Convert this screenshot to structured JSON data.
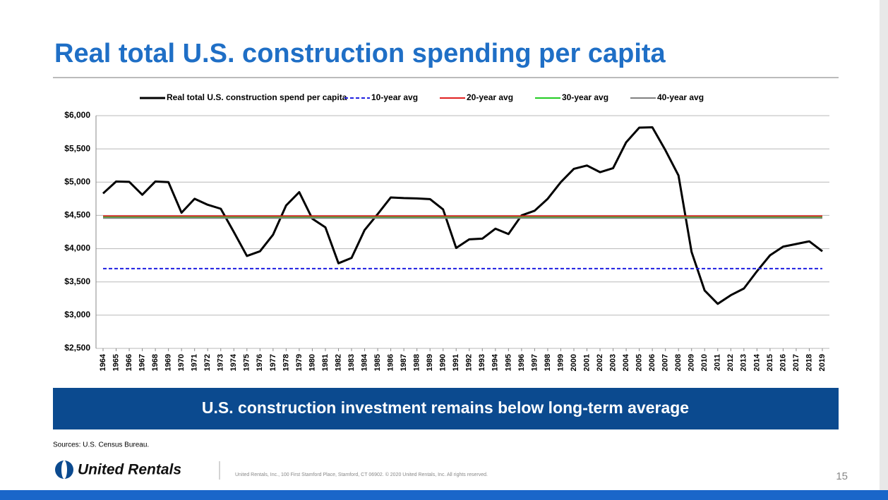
{
  "title": "Real total U.S. construction spending per capita",
  "chart_data": {
    "type": "line",
    "categories": [
      "1964",
      "1965",
      "1966",
      "1967",
      "1968",
      "1969",
      "1970",
      "1971",
      "1972",
      "1973",
      "1974",
      "1975",
      "1976",
      "1977",
      "1978",
      "1979",
      "1980",
      "1981",
      "1982",
      "1983",
      "1984",
      "1985",
      "1986",
      "1987",
      "1988",
      "1989",
      "1990",
      "1991",
      "1992",
      "1993",
      "1994",
      "1995",
      "1996",
      "1997",
      "1998",
      "1999",
      "2000",
      "2001",
      "2002",
      "2003",
      "2004",
      "2005",
      "2006",
      "2007",
      "2008",
      "2009",
      "2010",
      "2011",
      "2012",
      "2013",
      "2014",
      "2015",
      "2016",
      "2017",
      "2018",
      "2019"
    ],
    "series": [
      {
        "name": "Real total U.S. construction spend per capita",
        "color": "#000000",
        "values": [
          4830,
          5010,
          5005,
          4810,
          5010,
          5000,
          4540,
          4750,
          4660,
          4600,
          4250,
          3890,
          3960,
          4210,
          4650,
          4850,
          4450,
          4320,
          3780,
          3860,
          4280,
          4520,
          4770,
          4760,
          4755,
          4745,
          4590,
          4010,
          4140,
          4150,
          4300,
          4220,
          4500,
          4570,
          4750,
          5000,
          5200,
          5250,
          5150,
          5210,
          5600,
          5820,
          5825,
          5480,
          5100,
          3950,
          3370,
          3170,
          3300,
          3400,
          3660,
          3900,
          4030,
          4070,
          4110,
          3960
        ]
      },
      {
        "name": "10-year avg",
        "color": "#1f1fe0",
        "dashed": true,
        "value": 3700
      },
      {
        "name": "20-year avg",
        "color": "#e02020",
        "value": 4490
      },
      {
        "name": "30-year avg",
        "color": "#22cc22",
        "value": 4470
      },
      {
        "name": "40-year avg",
        "color": "#808080",
        "value": 4460
      }
    ],
    "ylim": [
      2500,
      6000
    ],
    "yticks": [
      {
        "value": 2500,
        "label": "$2,500"
      },
      {
        "value": 3000,
        "label": "$3,000"
      },
      {
        "value": 3500,
        "label": "$3,500"
      },
      {
        "value": 4000,
        "label": "$4,000"
      },
      {
        "value": 4500,
        "label": "$4,500"
      },
      {
        "value": 5000,
        "label": "$5,000"
      },
      {
        "value": 5500,
        "label": "$5,500"
      },
      {
        "value": 6000,
        "label": "$6,000"
      }
    ],
    "grid": true,
    "legend": "top"
  },
  "banner": "U.S. construction investment remains below long-term average",
  "sources": "Sources: U.S. Census Bureau.",
  "logo": "United Rentals",
  "footer": "United Rentals, Inc., 100 First Stamford Place, Stamford, CT 06902. © 2020 United Rentals, Inc. All rights reserved.",
  "page_number": "15"
}
